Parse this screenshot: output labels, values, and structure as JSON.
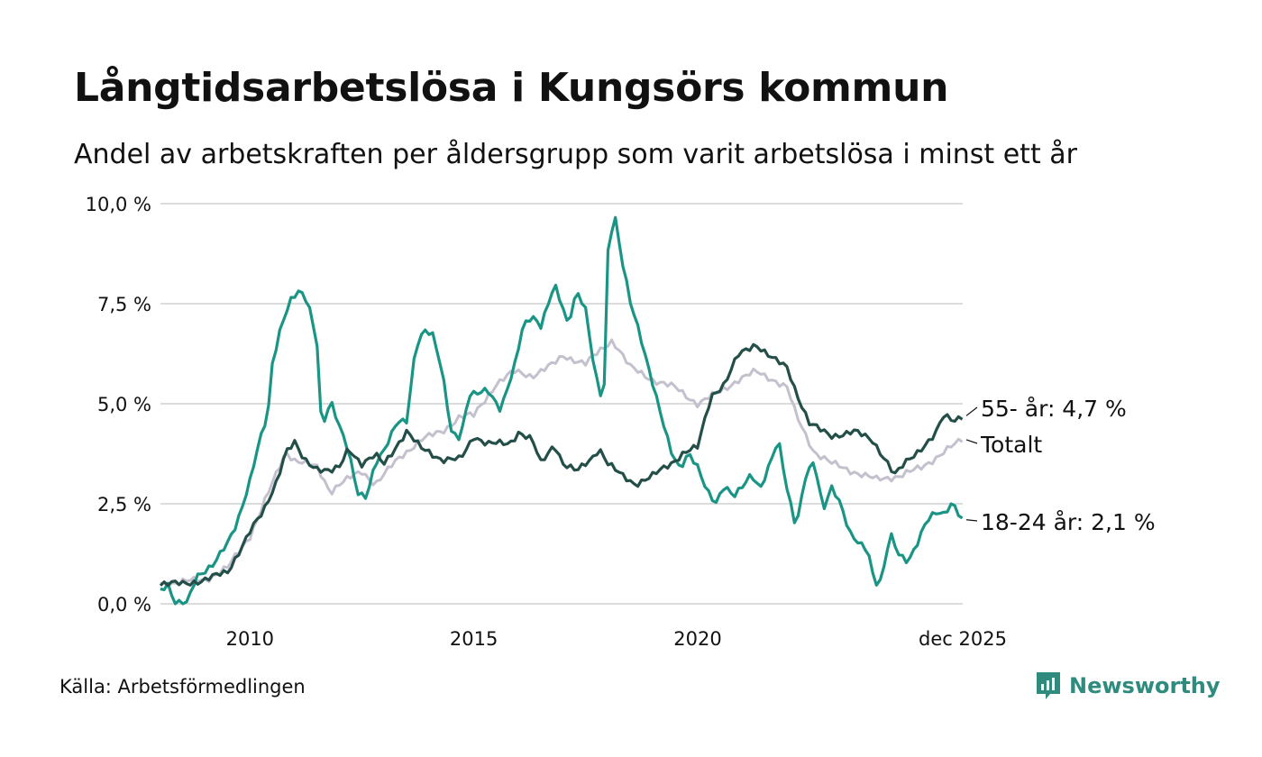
{
  "title": "Långtidsarbetslösa i Kungsörs kommun",
  "subtitle": "Andel av arbetskraften per åldersgrupp som varit arbetslösa i minst ett år",
  "source": "Källa: Arbetsförmedlingen",
  "brand": "Newsworthy",
  "chart_data": {
    "type": "line",
    "x_start": 2008.0,
    "x_step": 0.0833,
    "xlim": [
      2008.0,
      2025.92
    ],
    "ylim": [
      0,
      10
    ],
    "y_ticks": [
      0,
      2.5,
      5,
      7.5,
      10
    ],
    "y_tick_labels": [
      "0,0 %",
      "2,5 %",
      "5,0 %",
      "7,5 %",
      "10,0 %"
    ],
    "x_ticks": [
      2010,
      2015,
      2020,
      2025.92
    ],
    "x_tick_labels": [
      "2010",
      "2015",
      "2020",
      "dec 2025"
    ],
    "grid": true,
    "colors": {
      "total": "#c4c0ce",
      "young": "#1a9585",
      "old": "#244f48"
    },
    "series": [
      {
        "name": "Totalt",
        "label": "Totalt",
        "color": "#c4c0ce",
        "anchors": [
          [
            2008.0,
            0.5
          ],
          [
            2009.0,
            0.6
          ],
          [
            2009.5,
            0.9
          ],
          [
            2010.0,
            1.7
          ],
          [
            2010.5,
            3.0
          ],
          [
            2010.8,
            3.8
          ],
          [
            2011.0,
            3.6
          ],
          [
            2011.5,
            3.4
          ],
          [
            2011.8,
            2.8
          ],
          [
            2012.0,
            3.0
          ],
          [
            2012.5,
            3.3
          ],
          [
            2012.8,
            3.0
          ],
          [
            2013.3,
            3.6
          ],
          [
            2013.8,
            4.1
          ],
          [
            2014.3,
            4.3
          ],
          [
            2014.7,
            4.7
          ],
          [
            2015.0,
            4.7
          ],
          [
            2015.5,
            5.5
          ],
          [
            2015.9,
            5.8
          ],
          [
            2016.3,
            5.7
          ],
          [
            2016.8,
            6.0
          ],
          [
            2017.0,
            6.2
          ],
          [
            2017.5,
            6.0
          ],
          [
            2017.9,
            6.4
          ],
          [
            2018.1,
            6.6
          ],
          [
            2018.5,
            5.9
          ],
          [
            2019.0,
            5.6
          ],
          [
            2019.5,
            5.4
          ],
          [
            2020.0,
            5.0
          ],
          [
            2020.5,
            5.3
          ],
          [
            2020.9,
            5.6
          ],
          [
            2021.3,
            5.8
          ],
          [
            2021.7,
            5.6
          ],
          [
            2022.0,
            5.4
          ],
          [
            2022.2,
            4.7
          ],
          [
            2022.6,
            3.8
          ],
          [
            2023.0,
            3.5
          ],
          [
            2023.5,
            3.3
          ],
          [
            2024.0,
            3.1
          ],
          [
            2024.5,
            3.2
          ],
          [
            2025.0,
            3.4
          ],
          [
            2025.5,
            3.8
          ],
          [
            2025.92,
            4.1
          ]
        ]
      },
      {
        "name": "18-24 år",
        "label": "18-24 år: 2,1 %",
        "color": "#1a9585",
        "anchors": [
          [
            2008.0,
            0.4
          ],
          [
            2008.2,
            0.5
          ],
          [
            2008.3,
            0.0
          ],
          [
            2008.6,
            0.0
          ],
          [
            2008.8,
            0.7
          ],
          [
            2009.2,
            1.0
          ],
          [
            2009.5,
            1.5
          ],
          [
            2009.7,
            2.0
          ],
          [
            2010.0,
            3.1
          ],
          [
            2010.2,
            4.0
          ],
          [
            2010.4,
            4.7
          ],
          [
            2010.5,
            6.0
          ],
          [
            2010.7,
            7.0
          ],
          [
            2010.9,
            7.6
          ],
          [
            2011.1,
            7.8
          ],
          [
            2011.3,
            7.5
          ],
          [
            2011.5,
            6.5
          ],
          [
            2011.6,
            4.4
          ],
          [
            2011.8,
            5.1
          ],
          [
            2012.0,
            4.4
          ],
          [
            2012.2,
            3.8
          ],
          [
            2012.4,
            2.8
          ],
          [
            2012.6,
            2.7
          ],
          [
            2012.8,
            3.5
          ],
          [
            2013.0,
            3.8
          ],
          [
            2013.3,
            4.6
          ],
          [
            2013.5,
            4.6
          ],
          [
            2013.7,
            6.4
          ],
          [
            2013.9,
            6.8
          ],
          [
            2014.1,
            6.7
          ],
          [
            2014.3,
            5.8
          ],
          [
            2014.5,
            4.3
          ],
          [
            2014.7,
            4.1
          ],
          [
            2014.9,
            5.2
          ],
          [
            2015.3,
            5.4
          ],
          [
            2015.6,
            4.8
          ],
          [
            2015.9,
            5.9
          ],
          [
            2016.1,
            7.0
          ],
          [
            2016.3,
            7.2
          ],
          [
            2016.5,
            6.9
          ],
          [
            2016.7,
            7.6
          ],
          [
            2016.8,
            8.0
          ],
          [
            2017.0,
            7.4
          ],
          [
            2017.1,
            7.0
          ],
          [
            2017.3,
            7.8
          ],
          [
            2017.5,
            7.3
          ],
          [
            2017.7,
            5.8
          ],
          [
            2017.9,
            5.0
          ],
          [
            2018.0,
            9.0
          ],
          [
            2018.15,
            9.7
          ],
          [
            2018.3,
            8.6
          ],
          [
            2018.5,
            7.5
          ],
          [
            2018.7,
            6.8
          ],
          [
            2019.0,
            5.5
          ],
          [
            2019.2,
            4.6
          ],
          [
            2019.4,
            3.8
          ],
          [
            2019.6,
            3.4
          ],
          [
            2019.8,
            3.8
          ],
          [
            2020.0,
            3.4
          ],
          [
            2020.2,
            2.8
          ],
          [
            2020.4,
            2.5
          ],
          [
            2020.6,
            3.0
          ],
          [
            2020.8,
            2.7
          ],
          [
            2021.0,
            2.9
          ],
          [
            2021.2,
            3.2
          ],
          [
            2021.4,
            2.9
          ],
          [
            2021.6,
            3.5
          ],
          [
            2021.8,
            4.1
          ],
          [
            2022.0,
            2.8
          ],
          [
            2022.2,
            1.9
          ],
          [
            2022.4,
            3.2
          ],
          [
            2022.6,
            3.6
          ],
          [
            2022.8,
            2.3
          ],
          [
            2023.0,
            2.9
          ],
          [
            2023.2,
            2.5
          ],
          [
            2023.4,
            1.8
          ],
          [
            2023.6,
            1.5
          ],
          [
            2023.8,
            1.3
          ],
          [
            2023.95,
            0.5
          ],
          [
            2024.1,
            0.6
          ],
          [
            2024.3,
            1.8
          ],
          [
            2024.5,
            1.2
          ],
          [
            2024.7,
            1.0
          ],
          [
            2024.9,
            1.5
          ],
          [
            2025.1,
            2.1
          ],
          [
            2025.3,
            2.3
          ],
          [
            2025.5,
            2.2
          ],
          [
            2025.7,
            2.5
          ],
          [
            2025.92,
            2.1
          ]
        ]
      },
      {
        "name": "55- år",
        "label": "55- år: 4,7 %",
        "color": "#244f48",
        "anchors": [
          [
            2008.0,
            0.5
          ],
          [
            2008.5,
            0.5
          ],
          [
            2009.0,
            0.6
          ],
          [
            2009.5,
            0.8
          ],
          [
            2010.0,
            1.8
          ],
          [
            2010.3,
            2.3
          ],
          [
            2010.6,
            3.1
          ],
          [
            2010.8,
            3.8
          ],
          [
            2011.0,
            4.0
          ],
          [
            2011.2,
            3.6
          ],
          [
            2011.5,
            3.4
          ],
          [
            2011.8,
            3.3
          ],
          [
            2012.0,
            3.4
          ],
          [
            2012.2,
            3.9
          ],
          [
            2012.5,
            3.5
          ],
          [
            2012.8,
            3.7
          ],
          [
            2013.0,
            3.5
          ],
          [
            2013.3,
            4.0
          ],
          [
            2013.5,
            4.3
          ],
          [
            2013.8,
            3.9
          ],
          [
            2014.0,
            3.8
          ],
          [
            2014.3,
            3.6
          ],
          [
            2014.7,
            3.6
          ],
          [
            2015.0,
            4.2
          ],
          [
            2015.3,
            4.0
          ],
          [
            2015.8,
            4.0
          ],
          [
            2016.0,
            4.3
          ],
          [
            2016.3,
            4.1
          ],
          [
            2016.5,
            3.5
          ],
          [
            2016.8,
            4.0
          ],
          [
            2017.0,
            3.5
          ],
          [
            2017.3,
            3.3
          ],
          [
            2017.6,
            3.6
          ],
          [
            2017.8,
            3.9
          ],
          [
            2018.0,
            3.5
          ],
          [
            2018.3,
            3.2
          ],
          [
            2018.6,
            3.0
          ],
          [
            2019.0,
            3.2
          ],
          [
            2019.4,
            3.5
          ],
          [
            2019.7,
            3.8
          ],
          [
            2020.0,
            3.9
          ],
          [
            2020.3,
            5.2
          ],
          [
            2020.6,
            5.5
          ],
          [
            2020.9,
            6.2
          ],
          [
            2021.3,
            6.5
          ],
          [
            2021.7,
            6.1
          ],
          [
            2022.0,
            5.9
          ],
          [
            2022.2,
            5.3
          ],
          [
            2022.5,
            4.5
          ],
          [
            2022.8,
            4.3
          ],
          [
            2023.0,
            4.2
          ],
          [
            2023.5,
            4.3
          ],
          [
            2023.9,
            4.1
          ],
          [
            2024.2,
            3.6
          ],
          [
            2024.4,
            3.2
          ],
          [
            2024.7,
            3.6
          ],
          [
            2025.0,
            3.9
          ],
          [
            2025.3,
            4.2
          ],
          [
            2025.5,
            4.7
          ],
          [
            2025.7,
            4.6
          ],
          [
            2025.92,
            4.7
          ]
        ]
      }
    ]
  }
}
